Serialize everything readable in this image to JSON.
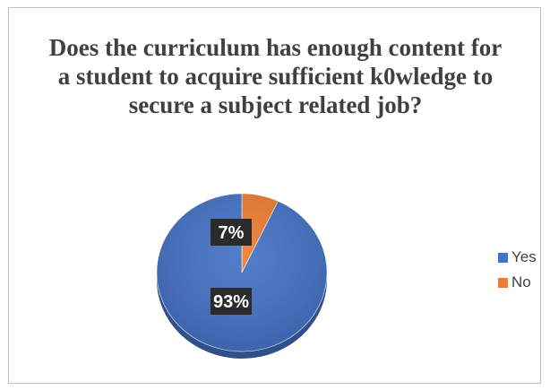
{
  "chart_data": {
    "type": "pie",
    "title": "Does the curriculum has enough content for a student to acquire sufficient k0wledge to secure a subject related job?",
    "categories": [
      "Yes",
      "No"
    ],
    "values": [
      93,
      7
    ],
    "labels": [
      "93%",
      "7%"
    ],
    "colors": [
      "#4472c4",
      "#ed7d31"
    ],
    "legend_position": "right"
  }
}
